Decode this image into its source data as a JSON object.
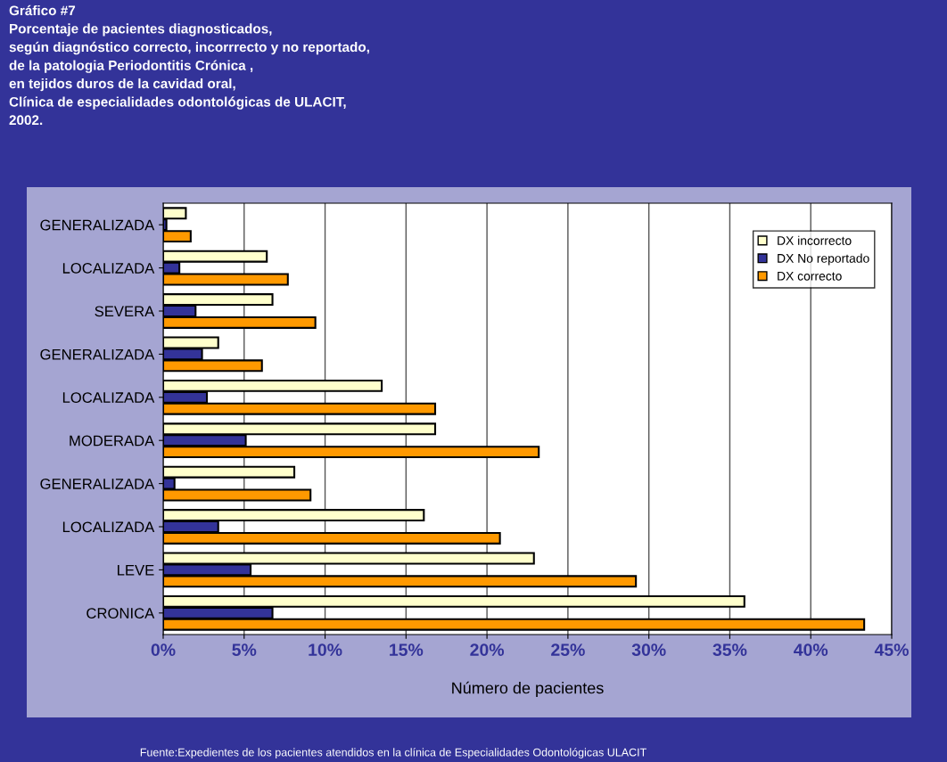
{
  "chart_data": {
    "type": "bar",
    "orientation": "horizontal",
    "title": "Gráfico #7\nPorcentaje de pacientes diagnosticados,\nsegún diagnóstico correcto, incorrrecto y no reportado,\nde la patologia Periodontitis Crónica ,\nen tejidos duros de la cavidad oral,\nClínica de especialidades odontológicas de ULACIT,\n2002.",
    "xlabel": "Número de pacientes",
    "annotations": [
      "Fuente:Expedientes de los pacientes atendidos en la clínica de Especialidades Odontológicas ULACIT"
    ],
    "categories": [
      "GENERALIZADA",
      "LOCALIZADA",
      "SEVERA",
      "GENERALIZADA",
      "LOCALIZADA",
      "MODERADA",
      "GENERALIZADA",
      "LOCALIZADA",
      "LEVE",
      "CRONICA"
    ],
    "series": [
      {
        "name": "DX incorrecto",
        "color": "#ffffcc",
        "values": [
          1.4,
          6.4,
          6.75,
          3.4,
          13.5,
          16.8,
          8.1,
          16.1,
          22.9,
          35.9
        ]
      },
      {
        "name": "DX No reportado",
        "color": "#333399",
        "values": [
          0.2,
          1.0,
          2.0,
          2.4,
          2.7,
          5.1,
          0.7,
          3.4,
          5.4,
          6.75
        ]
      },
      {
        "name": "DX correcto",
        "color": "#ff9900",
        "values": [
          1.7,
          7.7,
          9.4,
          6.1,
          16.8,
          23.2,
          9.1,
          20.8,
          29.2,
          43.3
        ]
      }
    ],
    "xlim": [
      0,
      45
    ],
    "xticks": [
      {
        "value": 0,
        "label": "0%"
      },
      {
        "value": 5,
        "label": "5%"
      },
      {
        "value": 10,
        "label": "10%"
      },
      {
        "value": 15,
        "label": "15%"
      },
      {
        "value": 20,
        "label": "20%"
      },
      {
        "value": 25,
        "label": "25%"
      },
      {
        "value": 30,
        "label": "30%"
      },
      {
        "value": 35,
        "label": "35%"
      },
      {
        "value": 40,
        "label": "40%"
      },
      {
        "value": 45,
        "label": "45%"
      }
    ],
    "grid": "x",
    "legend": "top right"
  }
}
